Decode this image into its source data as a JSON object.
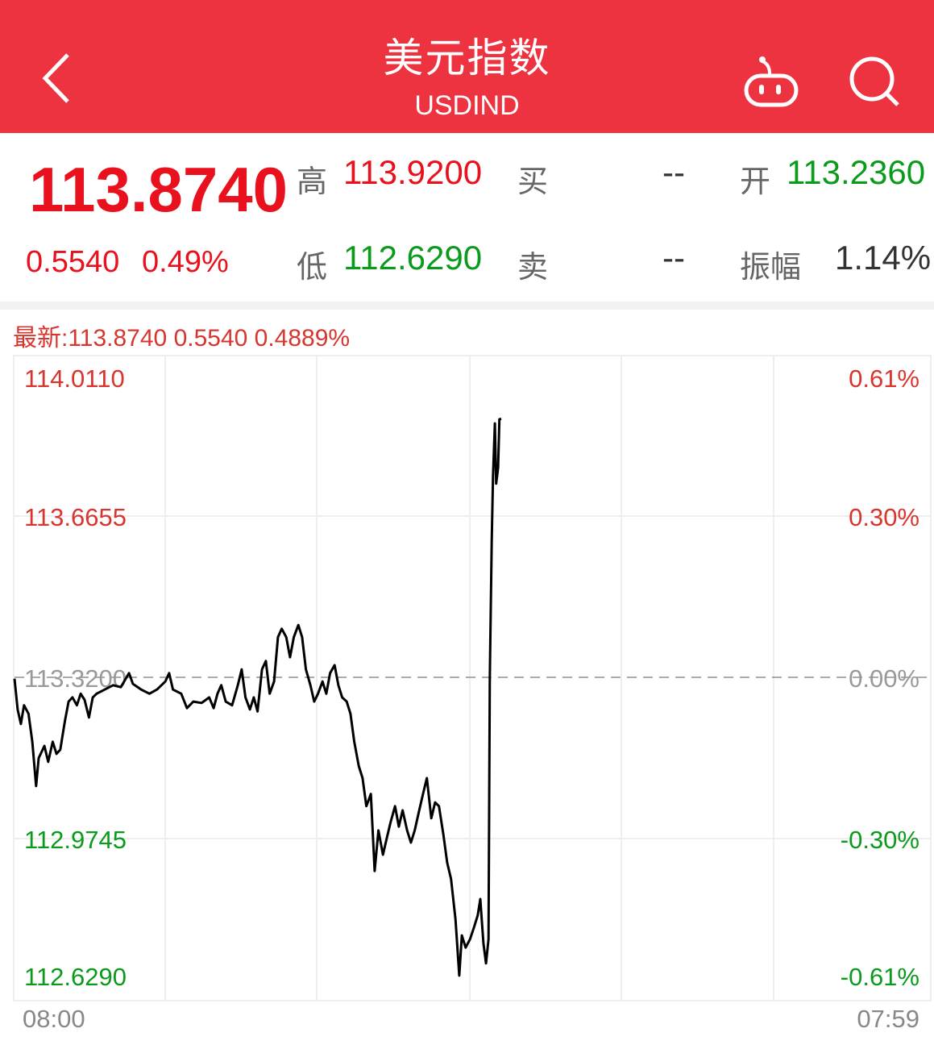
{
  "header": {
    "title": "美元指数",
    "code": "USDIND",
    "icons": [
      "back-chevron-icon",
      "robot-icon",
      "search-icon"
    ]
  },
  "quote": {
    "price": "113.8740",
    "change": "0.5540",
    "change_pct": "0.49%",
    "high_label": "高",
    "high": "113.9200",
    "low_label": "低",
    "low": "112.6290",
    "buy_label": "买",
    "buy": "--",
    "sell_label": "卖",
    "sell": "--",
    "open_label": "开",
    "open": "113.2360",
    "amplitude_label": "振幅",
    "amplitude": "1.14%"
  },
  "latest_line": "最新:113.8740  0.5540  0.4889%",
  "colors": {
    "header": "#ee3340",
    "up": "#e8111d",
    "down": "#0a9a1c",
    "line": "#000000"
  },
  "chart_data": {
    "type": "line",
    "ylim": [
      112.629,
      114.011
    ],
    "y_tick_labels_left": [
      "114.0110",
      "113.6655",
      "113.3200",
      "112.9745",
      "112.6290"
    ],
    "y_tick_labels_right": [
      "0.61%",
      "0.30%",
      "0.00%",
      "-0.30%",
      "-0.61%"
    ],
    "reference": 113.32,
    "x_start": "08:00",
    "x_end": "07:59",
    "grid": true,
    "series": [
      {
        "points": [
          [
            "08:00",
            113.317
          ],
          [
            "08:05",
            113.251
          ],
          [
            "08:10",
            113.22
          ],
          [
            "08:15",
            113.26
          ],
          [
            "08:22",
            113.242
          ],
          [
            "08:28",
            113.182
          ],
          [
            "08:34",
            113.087
          ],
          [
            "08:38",
            113.147
          ],
          [
            "08:47",
            113.173
          ],
          [
            "08:53",
            113.139
          ],
          [
            "09:00",
            113.182
          ],
          [
            "09:06",
            113.156
          ],
          [
            "09:12",
            113.165
          ],
          [
            "09:19",
            113.225
          ],
          [
            "09:25",
            113.268
          ],
          [
            "09:31",
            113.277
          ],
          [
            "09:38",
            113.26
          ],
          [
            "09:44",
            113.285
          ],
          [
            "09:50",
            113.272
          ],
          [
            "09:57",
            113.234
          ],
          [
            "10:03",
            113.277
          ],
          [
            "10:09",
            113.285
          ],
          [
            "10:22",
            113.294
          ],
          [
            "10:35",
            113.303
          ],
          [
            "10:47",
            113.299
          ],
          [
            "11:00",
            113.329
          ],
          [
            "11:06",
            113.306
          ],
          [
            "11:19",
            113.294
          ],
          [
            "11:32",
            113.285
          ],
          [
            "11:44",
            113.294
          ],
          [
            "11:57",
            113.311
          ],
          [
            "12:03",
            113.329
          ],
          [
            "12:09",
            113.294
          ],
          [
            "12:22",
            113.285
          ],
          [
            "12:31",
            113.254
          ],
          [
            "12:41",
            113.268
          ],
          [
            "12:54",
            113.265
          ],
          [
            "13:06",
            113.277
          ],
          [
            "13:13",
            113.254
          ],
          [
            "13:19",
            113.285
          ],
          [
            "13:25",
            113.303
          ],
          [
            "13:32",
            113.268
          ],
          [
            "13:42",
            113.26
          ],
          [
            "13:51",
            113.303
          ],
          [
            "13:57",
            113.337
          ],
          [
            "14:03",
            113.277
          ],
          [
            "14:10",
            113.251
          ],
          [
            "14:16",
            113.277
          ],
          [
            "14:22",
            113.247
          ],
          [
            "14:29",
            113.337
          ],
          [
            "14:35",
            113.355
          ],
          [
            "14:41",
            113.285
          ],
          [
            "14:48",
            113.311
          ],
          [
            "14:54",
            113.406
          ],
          [
            "15:00",
            113.424
          ],
          [
            "15:07",
            113.406
          ],
          [
            "15:13",
            113.363
          ],
          [
            "15:19",
            113.406
          ],
          [
            "15:26",
            113.432
          ],
          [
            "15:32",
            113.406
          ],
          [
            "15:38",
            113.337
          ],
          [
            "15:45",
            113.303
          ],
          [
            "15:51",
            113.268
          ],
          [
            "15:57",
            113.285
          ],
          [
            "16:04",
            113.311
          ],
          [
            "16:10",
            113.285
          ],
          [
            "16:16",
            113.329
          ],
          [
            "16:23",
            113.346
          ],
          [
            "16:29",
            113.303
          ],
          [
            "16:35",
            113.277
          ],
          [
            "16:42",
            113.268
          ],
          [
            "16:48",
            113.242
          ],
          [
            "16:54",
            113.182
          ],
          [
            "17:01",
            113.13
          ],
          [
            "17:07",
            113.104
          ],
          [
            "17:13",
            113.044
          ],
          [
            "17:20",
            113.07
          ],
          [
            "17:26",
            112.905
          ],
          [
            "17:32",
            112.992
          ],
          [
            "17:39",
            112.94
          ],
          [
            "17:45",
            112.975
          ],
          [
            "17:51",
            113.009
          ],
          [
            "17:58",
            113.044
          ],
          [
            "18:04",
            113.0
          ],
          [
            "18:10",
            113.035
          ],
          [
            "18:17",
            112.992
          ],
          [
            "18:23",
            112.966
          ],
          [
            "18:29",
            112.992
          ],
          [
            "18:36",
            113.035
          ],
          [
            "18:42",
            113.07
          ],
          [
            "18:48",
            113.104
          ],
          [
            "18:55",
            113.018
          ],
          [
            "19:01",
            113.052
          ],
          [
            "19:07",
            113.044
          ],
          [
            "19:14",
            112.983
          ],
          [
            "19:20",
            112.923
          ],
          [
            "19:26",
            112.888
          ],
          [
            "19:33",
            112.802
          ],
          [
            "19:39",
            112.681
          ],
          [
            "19:43",
            112.767
          ],
          [
            "19:49",
            112.741
          ],
          [
            "19:56",
            112.759
          ],
          [
            "20:02",
            112.784
          ],
          [
            "20:08",
            112.81
          ],
          [
            "20:12",
            112.845
          ],
          [
            "20:17",
            112.75
          ],
          [
            "20:21",
            112.707
          ],
          [
            "20:25",
            112.759
          ],
          [
            "20:27",
            113.32
          ],
          [
            "20:30",
            113.614
          ],
          [
            "20:32",
            113.752
          ],
          [
            "20:35",
            113.864
          ],
          [
            "20:37",
            113.735
          ],
          [
            "20:40",
            113.769
          ],
          [
            "20:42",
            113.873
          ],
          [
            "20:45",
            113.874
          ]
        ]
      }
    ]
  }
}
